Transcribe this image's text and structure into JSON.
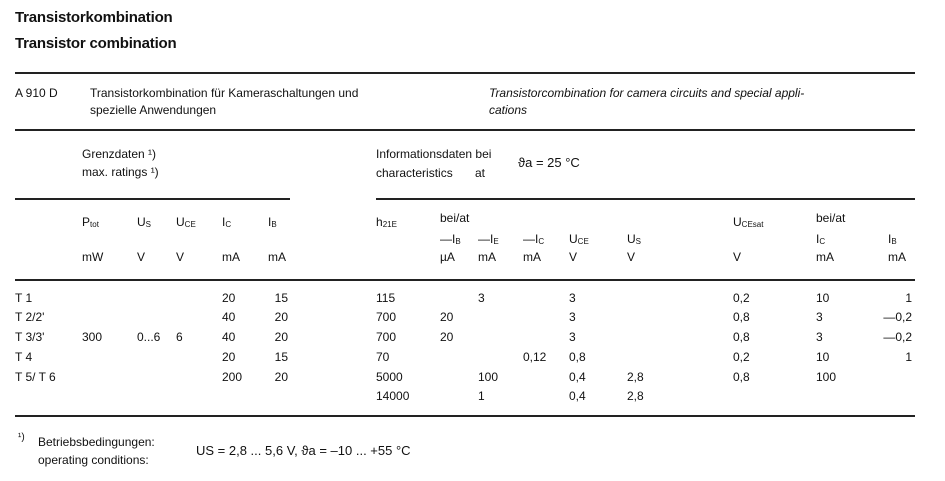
{
  "title_de": "Transistorkombination",
  "title_en": "Transistor combination",
  "type": "A 910 D",
  "desc_de_1": "Transistorkombination für Kameraschaltungen und",
  "desc_de_2": "spezielle Anwendungen",
  "desc_en_1": "Transistorcombination for camera circuits and special appli-",
  "desc_en_2": "cations",
  "limits_de": "Grenzdaten ¹)",
  "limits_en": "max. ratings ¹)",
  "info_de": "Informationsdaten bei",
  "info_en": "characteristics",
  "info_at": "at",
  "info_cond": "ϑa = 25 °C",
  "bei_at": "bei/at",
  "headers": [
    {
      "sym": "P",
      "sub": "tot",
      "unit": "mW"
    },
    {
      "sym": "U",
      "sub": "S",
      "unit": "V"
    },
    {
      "sym": "U",
      "sub": "CE",
      "unit": "V"
    },
    {
      "sym": "I",
      "sub": "C",
      "unit": "mA"
    },
    {
      "sym": "I",
      "sub": "B",
      "unit": "mA"
    },
    {
      "sym": "h",
      "sub": "21E",
      "unit": ""
    },
    {
      "sym": "—I",
      "sub": "B",
      "unit": "µA"
    },
    {
      "sym": "—I",
      "sub": "E",
      "unit": "mA"
    },
    {
      "sym": "—I",
      "sub": "C",
      "unit": "mA"
    },
    {
      "sym": "U",
      "sub": "CE",
      "unit": "V"
    },
    {
      "sym": "U",
      "sub": "S",
      "unit": "V"
    },
    {
      "sym": "U",
      "sub": "CEsat",
      "unit": "V"
    },
    {
      "sym": "I",
      "sub": "C",
      "unit": "mA"
    },
    {
      "sym": "I",
      "sub": "B",
      "unit": "mA"
    }
  ],
  "rows": [
    [
      "T 1",
      "",
      "",
      "",
      "20",
      "15",
      "115",
      "",
      "3",
      "",
      "3",
      "",
      "0,2",
      "10",
      "1"
    ],
    [
      "T 2/2'",
      "",
      "",
      "",
      "40",
      "20",
      "700",
      "20",
      "",
      "",
      "3",
      "",
      "0,8",
      "3",
      "—0,2"
    ],
    [
      "T 3/3'",
      "300",
      "0...6",
      "6",
      "40",
      "20",
      "700",
      "20",
      "",
      "",
      "3",
      "",
      "0,8",
      "3",
      "—0,2"
    ],
    [
      "T 4",
      "",
      "",
      "",
      "20",
      "15",
      "70",
      "",
      "",
      "0,12",
      "0,8",
      "",
      "0,2",
      "10",
      "1"
    ],
    [
      "T 5/ T 6",
      "",
      "",
      "",
      "200",
      "20",
      "5000",
      "",
      "100",
      "",
      "0,4",
      "2,8",
      "0,8",
      "100",
      ""
    ],
    [
      "",
      "",
      "",
      "",
      "",
      "",
      "14000",
      "",
      "1",
      "",
      "0,4",
      "2,8",
      "",
      "",
      ""
    ]
  ],
  "footnote_mark": "¹)",
  "footnote_de": "Betriebsbedingungen:",
  "footnote_en": "operating conditions:",
  "footnote_cond": "US = 2,8 ... 5,6 V, ϑa = –10 ... +55 °C"
}
